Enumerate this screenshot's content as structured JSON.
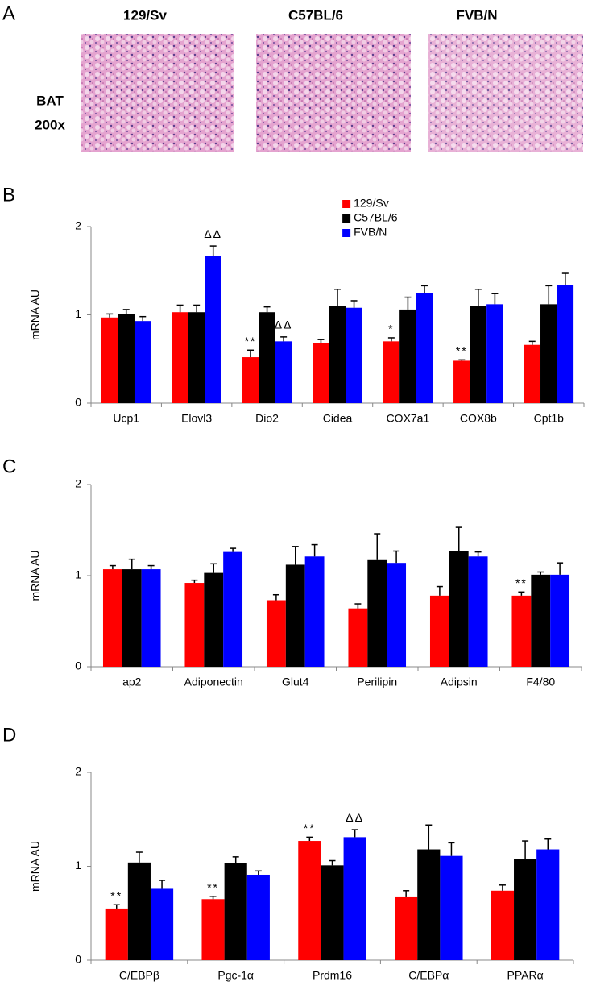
{
  "panel_a": {
    "label": "A",
    "strains": [
      "129/Sv",
      "C57BL/6",
      "FVB/N"
    ],
    "row_label": [
      "BAT",
      "200x"
    ]
  },
  "chart_data": [
    {
      "type": "bar",
      "panel": "B",
      "ylabel": "mRNA AU",
      "ylim": [
        0,
        2
      ],
      "yticks": [
        0,
        1,
        2
      ],
      "legend": "top",
      "categories": [
        "Ucp1",
        "Elovl3",
        "Dio2",
        "Cidea",
        "COX7a1",
        "COX8b",
        "Cpt1b"
      ],
      "series": [
        {
          "name": "129/Sv",
          "color": "#ff0000",
          "values": [
            0.97,
            1.03,
            0.52,
            0.68,
            0.7,
            0.48,
            0.66
          ],
          "errors": [
            0.04,
            0.08,
            0.08,
            0.04,
            0.04,
            0.01,
            0.04
          ],
          "annotations": [
            null,
            null,
            "**",
            null,
            "*",
            "**",
            null
          ]
        },
        {
          "name": "C57BL/6",
          "color": "#000000",
          "values": [
            1.01,
            1.03,
            1.03,
            1.1,
            1.06,
            1.1,
            1.12
          ],
          "errors": [
            0.05,
            0.08,
            0.06,
            0.19,
            0.14,
            0.19,
            0.21
          ]
        },
        {
          "name": "FVB/N",
          "color": "#0000ff",
          "values": [
            0.93,
            1.67,
            0.7,
            1.08,
            1.25,
            1.12,
            1.34
          ],
          "errors": [
            0.05,
            0.11,
            0.05,
            0.08,
            0.08,
            0.12,
            0.13
          ],
          "annotations": [
            null,
            "ΔΔ",
            "ΔΔ",
            null,
            null,
            null,
            null
          ]
        }
      ]
    },
    {
      "type": "bar",
      "panel": "C",
      "ylabel": "mRNA AU",
      "ylim": [
        0,
        2
      ],
      "yticks": [
        0,
        1,
        2
      ],
      "categories": [
        "ap2",
        "Adiponectin",
        "Glut4",
        "Perilipin",
        "Adipsin",
        "F4/80"
      ],
      "series": [
        {
          "color": "#ff0000",
          "values": [
            1.07,
            0.92,
            0.73,
            0.64,
            0.78,
            0.78
          ],
          "errors": [
            0.04,
            0.03,
            0.06,
            0.05,
            0.1,
            0.04
          ],
          "annotations": [
            null,
            null,
            null,
            null,
            null,
            "**"
          ]
        },
        {
          "color": "#000000",
          "values": [
            1.07,
            1.03,
            1.12,
            1.17,
            1.27,
            1.01
          ],
          "errors": [
            0.11,
            0.1,
            0.2,
            0.29,
            0.26,
            0.03
          ]
        },
        {
          "color": "#0000ff",
          "values": [
            1.07,
            1.26,
            1.21,
            1.14,
            1.21,
            1.01
          ],
          "errors": [
            0.04,
            0.04,
            0.13,
            0.13,
            0.05,
            0.13
          ]
        }
      ]
    },
    {
      "type": "bar",
      "panel": "D",
      "ylabel": "mRNA AU",
      "ylim": [
        0,
        2
      ],
      "yticks": [
        0,
        1,
        2
      ],
      "categories": [
        "C/EBPβ",
        "Pgc-1α",
        "Prdm16",
        "C/EBPα",
        "PPARα"
      ],
      "series": [
        {
          "color": "#ff0000",
          "values": [
            0.55,
            0.65,
            1.27,
            0.67,
            0.74
          ],
          "errors": [
            0.04,
            0.03,
            0.04,
            0.07,
            0.06
          ],
          "annotations": [
            "**",
            "**",
            "**",
            null,
            null
          ]
        },
        {
          "color": "#000000",
          "values": [
            1.04,
            1.03,
            1.01,
            1.18,
            1.08
          ],
          "errors": [
            0.11,
            0.07,
            0.05,
            0.26,
            0.19
          ]
        },
        {
          "color": "#0000ff",
          "values": [
            0.76,
            0.91,
            1.31,
            1.11,
            1.18
          ],
          "errors": [
            0.09,
            0.04,
            0.08,
            0.14,
            0.11
          ],
          "annotations": [
            null,
            null,
            "ΔΔ",
            null,
            null
          ]
        }
      ]
    }
  ]
}
